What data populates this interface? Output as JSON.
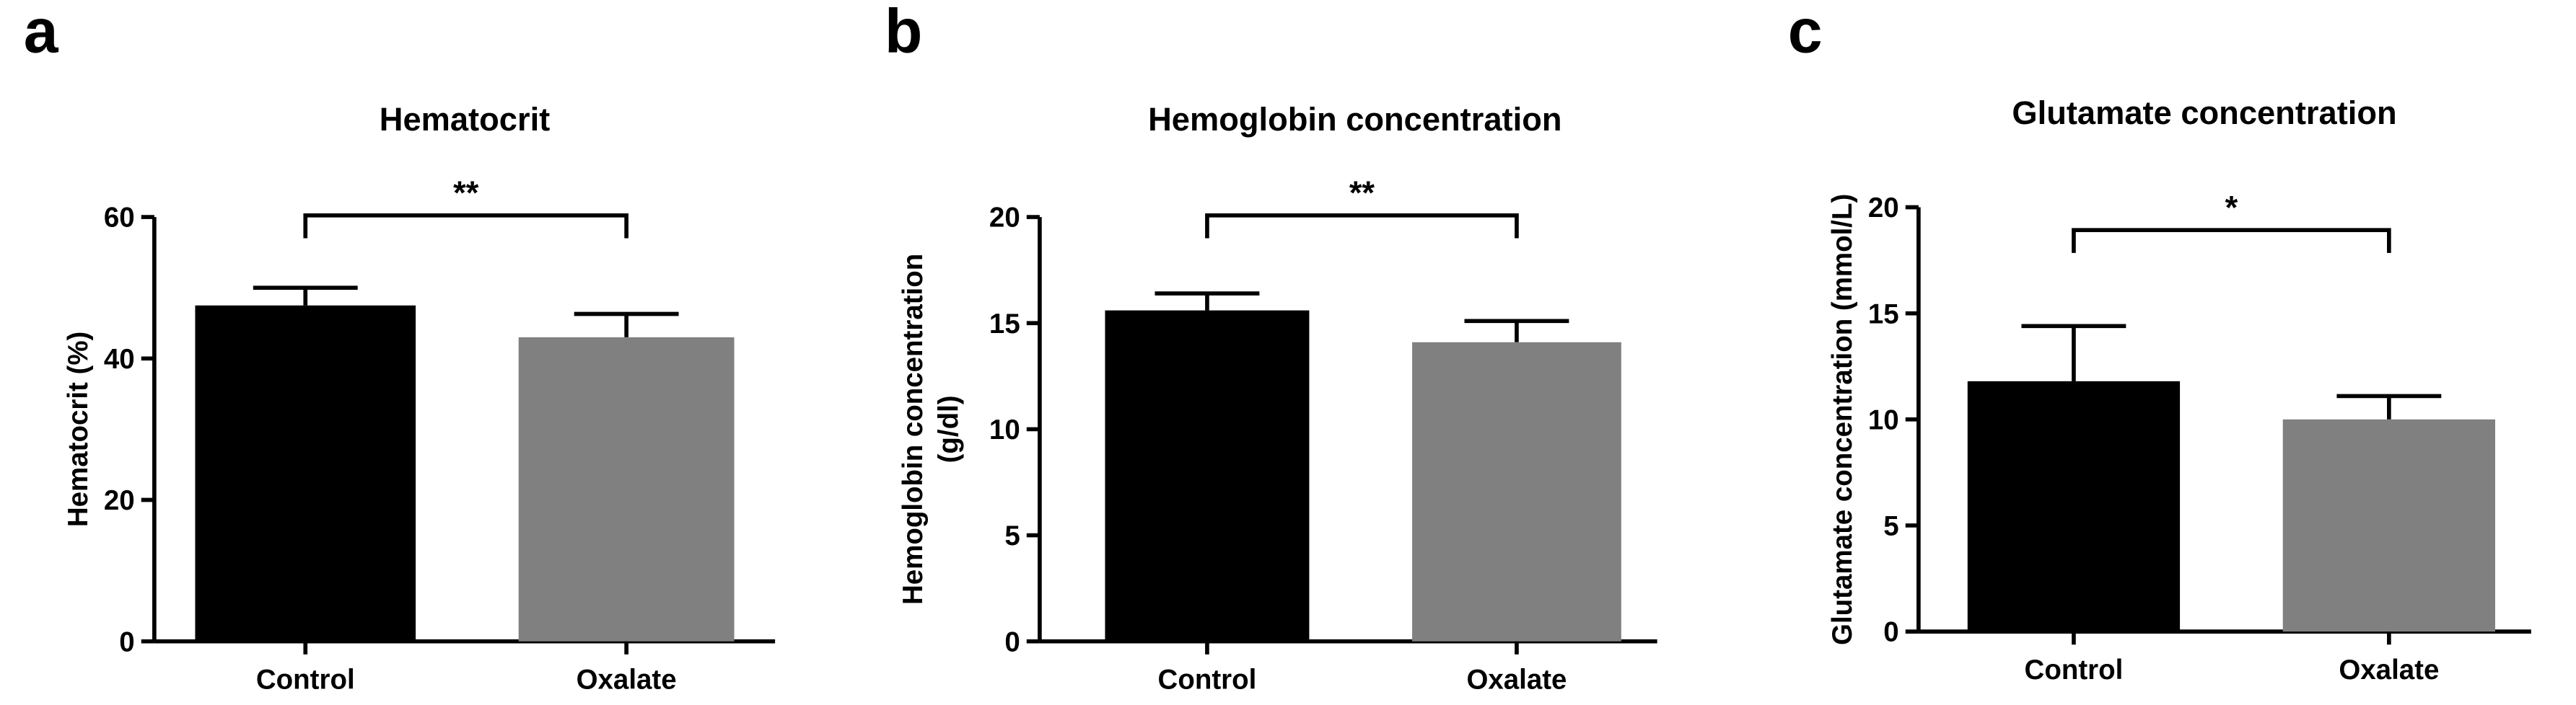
{
  "chart_data": [
    {
      "type": "bar",
      "panel": "a",
      "title": "Hematocrit",
      "ylabel": "Hematocrit (%)",
      "categories": [
        "Control",
        "Oxalate"
      ],
      "values": [
        47.5,
        43
      ],
      "errors": [
        2.5,
        3.3
      ],
      "colors": [
        "#000000",
        "#808080"
      ],
      "ylim": [
        0,
        60
      ],
      "yticks": [
        0,
        20,
        40,
        60
      ],
      "annotation": "**"
    },
    {
      "type": "bar",
      "panel": "b",
      "title": "Hemoglobin concentration",
      "ylabel": [
        "Hemoglobin concentration",
        "(g/dl)"
      ],
      "categories": [
        "Control",
        "Oxalate"
      ],
      "values": [
        15.6,
        14.1
      ],
      "errors": [
        0.8,
        1.0
      ],
      "colors": [
        "#000000",
        "#808080"
      ],
      "ylim": [
        0,
        20
      ],
      "yticks": [
        0,
        5,
        10,
        15,
        20
      ],
      "annotation": "**"
    },
    {
      "type": "bar",
      "panel": "c",
      "title": "Glutamate concentration",
      "ylabel": "Glutamate concentration (mmol/L)",
      "categories": [
        "Control",
        "Oxalate"
      ],
      "values": [
        11.8,
        10.0
      ],
      "errors": [
        2.6,
        1.1
      ],
      "colors": [
        "#000000",
        "#808080"
      ],
      "ylim": [
        0,
        20
      ],
      "yticks": [
        0,
        5,
        10,
        15,
        20
      ],
      "annotation": "*"
    }
  ]
}
